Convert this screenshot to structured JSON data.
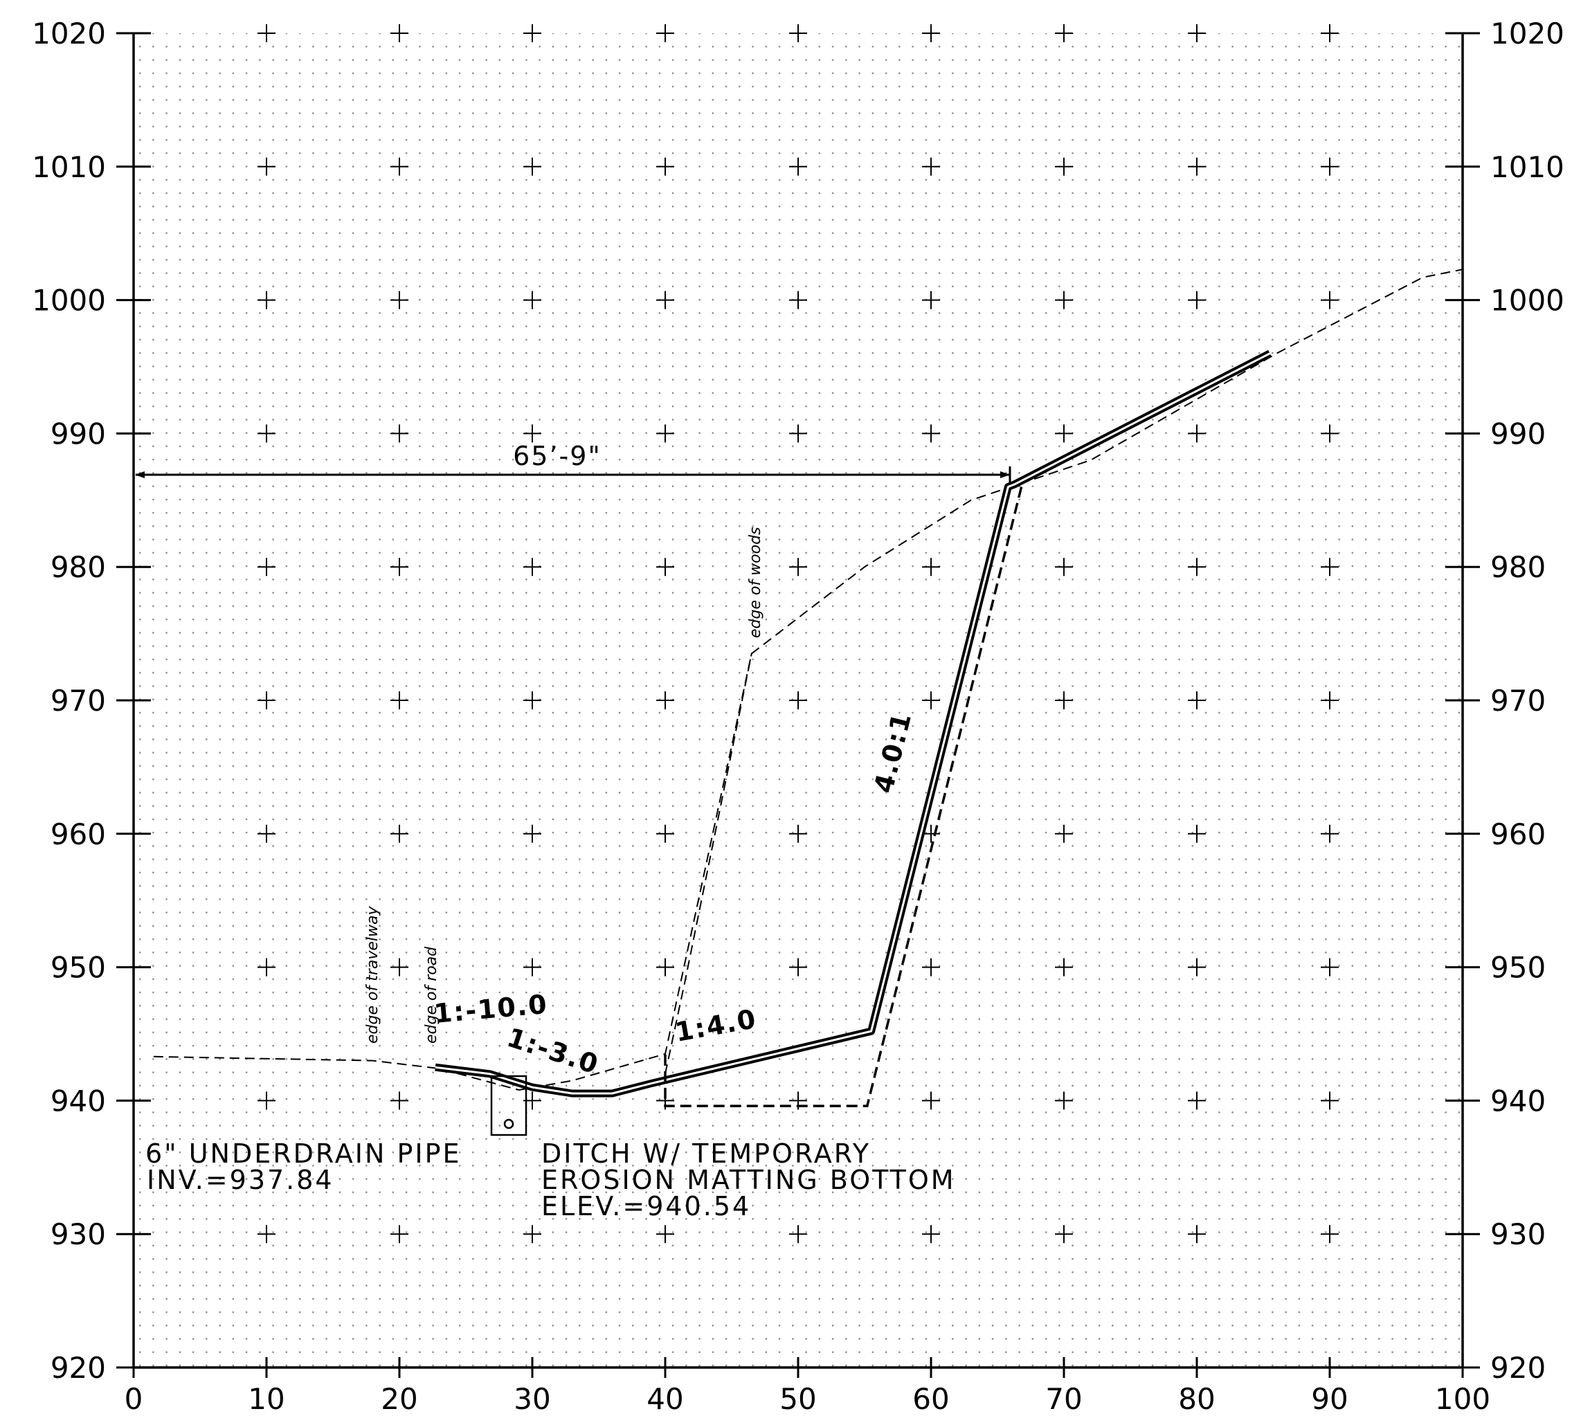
{
  "chart_data": {
    "type": "line",
    "title": "",
    "xlabel": "",
    "ylabel": "",
    "xlim": [
      0,
      100
    ],
    "ylim": [
      920,
      1020
    ],
    "x_ticks": [
      "0",
      "10",
      "20",
      "30",
      "40",
      "50",
      "60",
      "70",
      "80",
      "90",
      "100"
    ],
    "y_ticks": [
      "920",
      "930",
      "940",
      "950",
      "960",
      "970",
      "980",
      "990",
      "1000",
      "1010",
      "1020"
    ],
    "grid": "dotted grid with cross marks every 10 units",
    "series": [
      {
        "style": "dashed",
        "points": [
          [
            1.5,
            943.3
          ],
          [
            18,
            943
          ],
          [
            23,
            942.4
          ],
          [
            29,
            940.8
          ],
          [
            33,
            941.5
          ],
          [
            40,
            943.5
          ],
          [
            46.5,
            973.5
          ],
          [
            55,
            980
          ],
          [
            63,
            985
          ],
          [
            66,
            986
          ],
          [
            72,
            988
          ],
          [
            86,
            996
          ],
          [
            97,
            1001.7
          ],
          [
            100,
            1002.3
          ]
        ]
      },
      {
        "style": "thick-double",
        "points": [
          [
            22.7,
            942.5
          ],
          [
            26.8,
            942
          ],
          [
            30,
            941
          ],
          [
            33,
            940.54
          ],
          [
            36,
            940.54
          ],
          [
            39,
            941.3
          ],
          [
            55.5,
            945.2
          ],
          [
            65.8,
            986
          ],
          [
            66.3,
            986.2
          ],
          [
            85.5,
            996
          ]
        ]
      },
      {
        "style": "dashed-thick",
        "points": [
          [
            66.8,
            986
          ],
          [
            55.2,
            939.6
          ],
          [
            40,
            939.6
          ],
          [
            40,
            943.5
          ]
        ]
      },
      {
        "style": "dashed",
        "points": [
          [
            40,
            942
          ],
          [
            41.5,
            949
          ],
          [
            46.5,
            973.5
          ]
        ]
      }
    ]
  },
  "dimension_label": "65’-9\"",
  "slope_labels": [
    "1:-10.0",
    "1:-3.0",
    "1:4.0",
    "4.0:1"
  ],
  "edge_labels": [
    "edge of travelway",
    "edge of road",
    "edge of woods"
  ],
  "notes": {
    "underdrain_line1": "6\" UNDERDRAIN PIPE",
    "underdrain_line2": "INV.=937.84",
    "ditch_line1": "DITCH W/ TEMPORARY",
    "ditch_line2": "EROSION MATTING BOTTOM",
    "ditch_line3": "ELEV.=940.54"
  }
}
